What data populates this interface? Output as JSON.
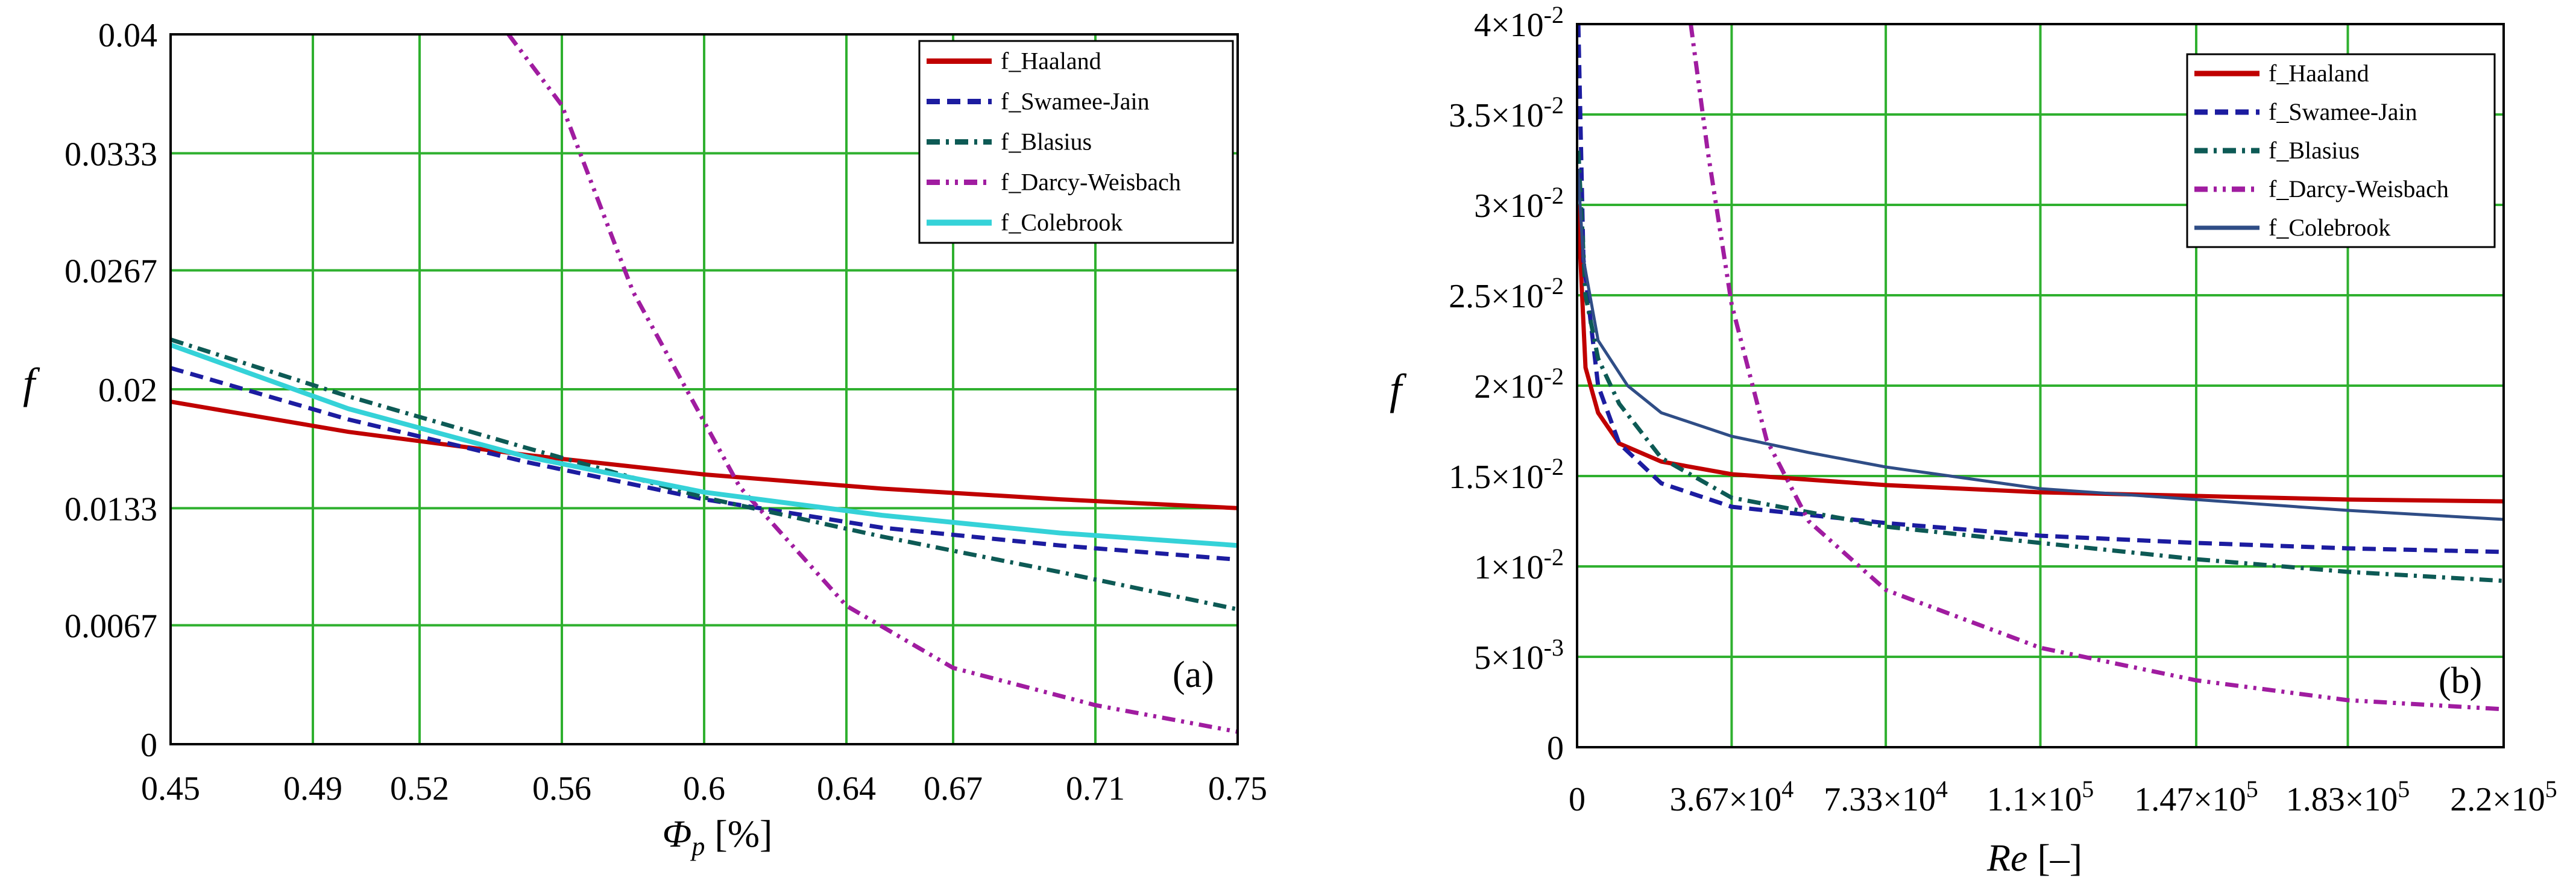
{
  "colors": {
    "grid": "#2fb02f",
    "haaland": "#c00000",
    "swamee_jain": "#1c1ca0",
    "blasius": "#0d5a55",
    "darcy_weisbach": "#a01ca0",
    "colebrook_a": "#35d2d8",
    "colebrook_b": "#2f4d86"
  },
  "chart_data": [
    {
      "type": "line",
      "panel_label": "(a)",
      "xlabel_symbol": "Φ",
      "xlabel_sub": "p",
      "xlabel_unit": " [%]",
      "ylabel": "f",
      "xlim": [
        0.45,
        0.75
      ],
      "ylim": [
        0,
        0.04
      ],
      "x_ticks": [
        0.45,
        0.49,
        0.52,
        0.56,
        0.6,
        0.64,
        0.67,
        0.71,
        0.75
      ],
      "x_tick_labels": [
        "0.45",
        "0.49",
        "0.52",
        "0.56",
        "0.6",
        "0.64",
        "0.67",
        "0.71",
        "0.75"
      ],
      "y_ticks": [
        0,
        0.0067,
        0.0133,
        0.02,
        0.0267,
        0.0333,
        0.04
      ],
      "y_tick_labels": [
        "0",
        "0.0067",
        "0.0133",
        "0.02",
        "0.0267",
        "0.0333",
        "0.04"
      ],
      "legend_position": "top-right",
      "series": [
        {
          "name": "f_Haaland",
          "style": "solid",
          "color_key": "haaland",
          "x": [
            0.45,
            0.5,
            0.55,
            0.6,
            0.65,
            0.7,
            0.75
          ],
          "y": [
            0.0193,
            0.0176,
            0.0163,
            0.0152,
            0.0144,
            0.0138,
            0.0133
          ]
        },
        {
          "name": "f_Swamee-Jain",
          "style": "dashed",
          "color_key": "swamee_jain",
          "x": [
            0.45,
            0.5,
            0.55,
            0.6,
            0.65,
            0.7,
            0.75
          ],
          "y": [
            0.0212,
            0.0183,
            0.0159,
            0.0138,
            0.0122,
            0.0112,
            0.0104
          ]
        },
        {
          "name": "f_Blasius",
          "style": "dashdot",
          "color_key": "blasius",
          "x": [
            0.45,
            0.5,
            0.55,
            0.6,
            0.65,
            0.7,
            0.75
          ],
          "y": [
            0.0228,
            0.0196,
            0.0167,
            0.0139,
            0.0117,
            0.0097,
            0.0076
          ]
        },
        {
          "name": "f_Darcy-Weisbach",
          "style": "dashdotdot",
          "color_key": "darcy_weisbach",
          "x": [
            0.545,
            0.56,
            0.58,
            0.61,
            0.64,
            0.67,
            0.71,
            0.75
          ],
          "y": [
            0.04,
            0.036,
            0.0255,
            0.0145,
            0.0078,
            0.0043,
            0.0022,
            0.0007
          ]
        },
        {
          "name": "f_Colebrook",
          "style": "solid",
          "color_key": "colebrook_a",
          "x": [
            0.45,
            0.5,
            0.55,
            0.6,
            0.65,
            0.7,
            0.75
          ],
          "y": [
            0.0225,
            0.0189,
            0.0162,
            0.0142,
            0.0129,
            0.0119,
            0.0112
          ]
        }
      ]
    },
    {
      "type": "line",
      "panel_label": "(b)",
      "xlabel_symbol": "Re",
      "xlabel_unit": " [–]",
      "ylabel": "f",
      "xlim": [
        0,
        220000
      ],
      "ylim": [
        0,
        0.04
      ],
      "x_ticks": [
        0,
        36700,
        73300,
        110000,
        147000,
        183000,
        220000
      ],
      "x_tick_labels": [
        {
          "mantissa": "0",
          "exp": ""
        },
        {
          "mantissa": "3.67×10",
          "exp": "4"
        },
        {
          "mantissa": "7.33×10",
          "exp": "4"
        },
        {
          "mantissa": "1.1×10",
          "exp": "5"
        },
        {
          "mantissa": "1.47×10",
          "exp": "5"
        },
        {
          "mantissa": "1.83×10",
          "exp": "5"
        },
        {
          "mantissa": "2.2×10",
          "exp": "5"
        }
      ],
      "y_ticks": [
        0,
        0.005,
        0.01,
        0.015,
        0.02,
        0.025,
        0.03,
        0.035,
        0.04
      ],
      "y_tick_labels": [
        {
          "mantissa": "0",
          "exp": ""
        },
        {
          "mantissa": "5×10",
          "exp": "-3"
        },
        {
          "mantissa": "1×10",
          "exp": "-2"
        },
        {
          "mantissa": "1.5×10",
          "exp": "-2"
        },
        {
          "mantissa": "2×10",
          "exp": "-2"
        },
        {
          "mantissa": "2.5×10",
          "exp": "-2"
        },
        {
          "mantissa": "3×10",
          "exp": "-2"
        },
        {
          "mantissa": "3.5×10",
          "exp": "-2"
        },
        {
          "mantissa": "4×10",
          "exp": "-2"
        }
      ],
      "legend_position": "top-right",
      "series": [
        {
          "name": "f_Haaland",
          "style": "solid",
          "color_key": "haaland",
          "x": [
            200,
            2000,
            5000,
            10000,
            20000,
            36700,
            73300,
            110000,
            147000,
            183000,
            220000
          ],
          "y": [
            0.03,
            0.021,
            0.0185,
            0.0168,
            0.0158,
            0.0151,
            0.0145,
            0.0141,
            0.0139,
            0.0137,
            0.0136
          ]
        },
        {
          "name": "f_Swamee-Jain",
          "style": "dashed",
          "color_key": "swamee_jain",
          "x": [
            300,
            1500,
            5000,
            10000,
            20000,
            36700,
            73300,
            110000,
            147000,
            183000,
            220000
          ],
          "y": [
            0.04,
            0.027,
            0.02,
            0.0168,
            0.0146,
            0.0133,
            0.0124,
            0.0117,
            0.0113,
            0.011,
            0.0108
          ]
        },
        {
          "name": "f_Blasius",
          "style": "dashdot",
          "color_key": "blasius",
          "x": [
            300,
            2000,
            5000,
            10000,
            20000,
            36700,
            73300,
            110000,
            147000,
            183000,
            220000
          ],
          "y": [
            0.033,
            0.025,
            0.0215,
            0.019,
            0.016,
            0.0138,
            0.0122,
            0.0113,
            0.0104,
            0.0097,
            0.0092
          ]
        },
        {
          "name": "f_Darcy-Weisbach",
          "style": "dashdotdot",
          "color_key": "darcy_weisbach",
          "x": [
            27000,
            31000,
            36700,
            45000,
            55000,
            73300,
            110000,
            147000,
            183000,
            220000
          ],
          "y": [
            0.04,
            0.033,
            0.0245,
            0.017,
            0.0125,
            0.0087,
            0.0055,
            0.0037,
            0.0026,
            0.0021
          ]
        },
        {
          "name": "f_Colebrook",
          "style": "solid",
          "color_key": "colebrook_b",
          "x": [
            200,
            1500,
            5000,
            12000,
            20000,
            36700,
            55000,
            73300,
            110000,
            147000,
            183000,
            220000
          ],
          "y": [
            0.032,
            0.027,
            0.0225,
            0.02,
            0.0185,
            0.0172,
            0.0163,
            0.0155,
            0.0143,
            0.0137,
            0.0131,
            0.0126
          ]
        }
      ]
    }
  ]
}
